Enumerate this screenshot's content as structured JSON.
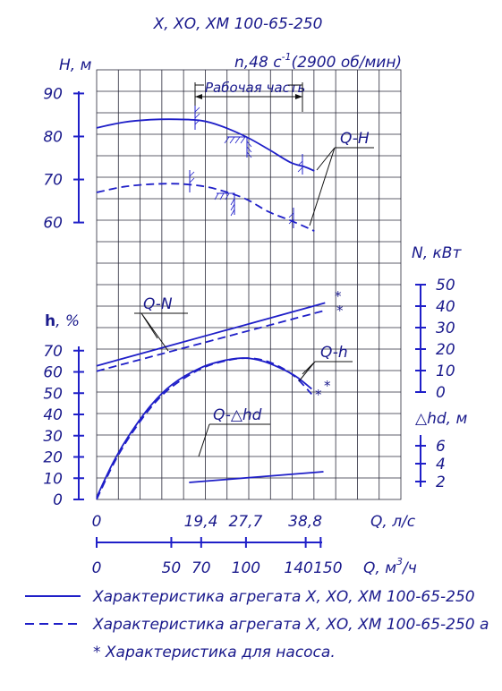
{
  "chart_data": {
    "type": "line",
    "title": "Х, ХО, ХМ 100-65-250",
    "speed_label": "n,48 с",
    "speed_sup": "-1",
    "speed_rpm": "(2900 об/мин)",
    "working_range_label": "Рабочая часть",
    "x_axis": {
      "label": "Q, л/с",
      "range": [
        0,
        51.6
      ],
      "ticks": [
        "0",
        "19,4",
        "27,7",
        "38,8"
      ],
      "tick_values": [
        0,
        19.4,
        27.7,
        38.8
      ]
    },
    "x2_axis": {
      "label": "Q, м",
      "label_sup": "3",
      "label_tail": "/ч",
      "ticks": [
        "0",
        "50",
        "70",
        "100",
        "140",
        "150"
      ],
      "tick_values": [
        0,
        50,
        70,
        100,
        140,
        150
      ]
    },
    "axes": {
      "H": {
        "label": "Н, м",
        "ticks": [
          "60",
          "70",
          "80",
          "90"
        ],
        "range": [
          57,
          93
        ]
      },
      "h": {
        "label_main": "h",
        "label_tail": ", %",
        "ticks": [
          "0",
          "10",
          "20",
          "30",
          "40",
          "50",
          "60",
          "70"
        ],
        "range": [
          0,
          72
        ]
      },
      "N": {
        "label": "N, кВт",
        "ticks": [
          "0",
          "10",
          "20",
          "30",
          "40",
          "50"
        ],
        "range": [
          0,
          50
        ]
      },
      "hd": {
        "label_pre": "△",
        "label": "hd, м",
        "ticks": [
          "2",
          "4",
          "6"
        ],
        "range": [
          0,
          7
        ]
      }
    },
    "series": [
      {
        "name": "Q-H",
        "style": "solid",
        "axis": "H",
        "x": [
          0,
          5,
          10,
          15,
          19.4,
          23,
          27.7,
          32,
          36,
          38.8,
          40.5
        ],
        "y": [
          82.0,
          83.3,
          83.9,
          84.0,
          83.7,
          82.5,
          80.0,
          77.0,
          74.0,
          72.9,
          72.0
        ]
      },
      {
        "name": "Q-H",
        "style": "dashed",
        "axis": "H",
        "x": [
          0,
          5,
          10,
          15,
          19.4,
          23,
          27.7,
          32,
          36,
          38.8,
          40.5
        ],
        "y": [
          67.0,
          68.3,
          68.9,
          69.0,
          68.5,
          67.5,
          65.5,
          62.5,
          60.5,
          59.0,
          58.0
        ]
      },
      {
        "name": "Q-N",
        "style": "solid",
        "axis": "N",
        "x": [
          0,
          42.5
        ],
        "y": [
          12.2,
          41.5
        ]
      },
      {
        "name": "Q-N",
        "style": "dashed",
        "axis": "N",
        "x": [
          0,
          42.5
        ],
        "y": [
          9.7,
          38.0
        ]
      },
      {
        "name": "Q-h",
        "style": "solid",
        "axis": "h",
        "x": [
          0,
          3,
          6,
          10,
          14,
          19.4,
          24,
          27.7,
          31,
          34,
          37,
          40
        ],
        "y": [
          1.0,
          17.0,
          30.0,
          44.0,
          54.0,
          62.0,
          65.5,
          66.5,
          65.0,
          62.0,
          58.0,
          52.0
        ]
      },
      {
        "name": "Q-h",
        "style": "dashed",
        "axis": "h",
        "x": [
          0,
          3,
          6,
          10,
          14,
          19.4,
          24,
          27.7,
          31,
          34,
          37,
          40
        ],
        "y": [
          0.0,
          16.0,
          29.0,
          43.0,
          53.0,
          61.5,
          65.2,
          66.5,
          65.5,
          62.5,
          57.5,
          49.5
        ]
      },
      {
        "name": "Q-△hd",
        "style": "solid",
        "axis": "hd",
        "x": [
          17.2,
          42.2
        ],
        "y": [
          1.9,
          3.1
        ]
      }
    ],
    "curve_labels": [
      "Q-H",
      "Q-N",
      "Q-h",
      "Q-△hd"
    ],
    "asterisk": "*",
    "legend_position": "bottom",
    "grid": true
  },
  "legend": {
    "solid": "Характеристика агрегата Х, ХО, ХМ 100-65-250",
    "dashed": "Характеристика агрегата Х, ХО, ХМ 100-65-250 а",
    "note": "* Характеристика для насоса."
  }
}
